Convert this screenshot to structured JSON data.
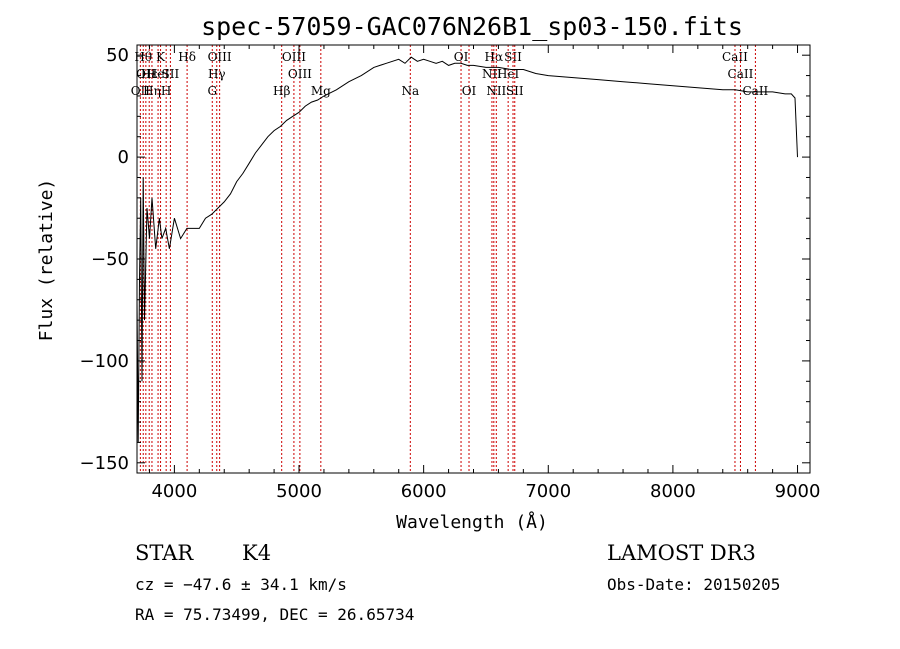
{
  "chart_data": {
    "type": "line",
    "title": "spec-57059-GAC076N26B1_sp03-150.fits",
    "xlabel": "Wavelength (Å)",
    "ylabel": "Flux (relative)",
    "xlim": [
      3700,
      9100
    ],
    "ylim": [
      -155,
      55
    ],
    "xticks": [
      4000,
      5000,
      6000,
      7000,
      8000,
      9000
    ],
    "yticks": [
      -150,
      -100,
      -50,
      0,
      50
    ],
    "series": [
      {
        "x": [
          3700,
          3710,
          3720,
          3730,
          3740,
          3750,
          3760,
          3780,
          3800,
          3820,
          3850,
          3880,
          3900,
          3930,
          3960,
          4000,
          4050,
          4100,
          4150,
          4200,
          4250,
          4300,
          4350,
          4400,
          4450,
          4500,
          4550,
          4600,
          4650,
          4700,
          4750,
          4800,
          4850,
          4900,
          4950,
          5000,
          5050,
          5100,
          5150,
          5200,
          5300,
          5400,
          5500,
          5600,
          5700,
          5800,
          5850,
          5900,
          5950,
          6000,
          6050,
          6100,
          6150,
          6200,
          6250,
          6300,
          6350,
          6400,
          6500,
          6600,
          6700,
          6800,
          6900,
          7000,
          7200,
          7400,
          7600,
          7800,
          8000,
          8200,
          8400,
          8500,
          8600,
          8700,
          8800,
          8900,
          8950,
          8980,
          9000
        ],
        "y": [
          -70,
          -140,
          -60,
          -20,
          -110,
          -10,
          -80,
          -25,
          -40,
          -20,
          -45,
          -30,
          -40,
          -35,
          -45,
          -30,
          -40,
          -35,
          -35,
          -35,
          -30,
          -28,
          -25,
          -22,
          -18,
          -12,
          -8,
          -3,
          2,
          6,
          10,
          13,
          15,
          18,
          20,
          22,
          25,
          27,
          28,
          30,
          33,
          37,
          40,
          44,
          46,
          48,
          46,
          49,
          47,
          48,
          47,
          46,
          47,
          45,
          46,
          46,
          45,
          45,
          44,
          44,
          43,
          43,
          41,
          40,
          39,
          38,
          37,
          36,
          35,
          34,
          33,
          33,
          32,
          32,
          32,
          31,
          31,
          29,
          0
        ]
      }
    ],
    "lines": [
      {
        "x": 3727,
        "tier": 2,
        "label": "OII"
      },
      {
        "x": 3750,
        "tier": 0,
        "label": "Hθ"
      },
      {
        "x": 3771,
        "tier": 1,
        "label": "OII"
      },
      {
        "x": 3798,
        "tier": 1,
        "label": "Hε"
      },
      {
        "x": 3820,
        "tier": 2,
        "label": "Hη"
      },
      {
        "x": 3869,
        "tier": 1,
        "label": "HeI"
      },
      {
        "x": 3889,
        "tier": 0,
        "label": "K"
      },
      {
        "x": 3934,
        "tier": 2,
        "label": "H"
      },
      {
        "x": 3968,
        "tier": 1,
        "label": "SII"
      },
      {
        "x": 4102,
        "tier": 0,
        "label": "Hδ"
      },
      {
        "x": 4304,
        "tier": 2,
        "label": "G"
      },
      {
        "x": 4340,
        "tier": 1,
        "label": "Hγ"
      },
      {
        "x": 4363,
        "tier": 0,
        "label": "OIII"
      },
      {
        "x": 4861,
        "tier": 2,
        "label": "Hβ"
      },
      {
        "x": 4959,
        "tier": 0,
        "label": "OIII"
      },
      {
        "x": 5007,
        "tier": 1,
        "label": "OIII"
      },
      {
        "x": 5175,
        "tier": 2,
        "label": "Mg"
      },
      {
        "x": 5893,
        "tier": 2,
        "label": "Na"
      },
      {
        "x": 6300,
        "tier": 0,
        "label": "OI"
      },
      {
        "x": 6364,
        "tier": 2,
        "label": "OI"
      },
      {
        "x": 6548,
        "tier": 1,
        "label": "NII"
      },
      {
        "x": 6563,
        "tier": 0,
        "label": "Hα"
      },
      {
        "x": 6583,
        "tier": 2,
        "label": "NII"
      },
      {
        "x": 6678,
        "tier": 1,
        "label": "HeI"
      },
      {
        "x": 6717,
        "tier": 0,
        "label": "SII"
      },
      {
        "x": 6731,
        "tier": 2,
        "label": "SII"
      },
      {
        "x": 8498,
        "tier": 0,
        "label": "CaII"
      },
      {
        "x": 8542,
        "tier": 1,
        "label": "CaII"
      },
      {
        "x": 8662,
        "tier": 2,
        "label": "CaII"
      }
    ],
    "grid": false,
    "legend": "none"
  },
  "info": {
    "object_class": "STAR",
    "subclass": "K4",
    "survey": "LAMOST DR3",
    "cz": "cz = −47.6 ± 34.1 km/s",
    "obs_date": "Obs-Date: 20150205",
    "radec": "RA =  75.73499, DEC =  26.65734"
  },
  "colors": {
    "spectrum": "#000000",
    "line_markers": "#cc0000",
    "axes": "#000000"
  }
}
